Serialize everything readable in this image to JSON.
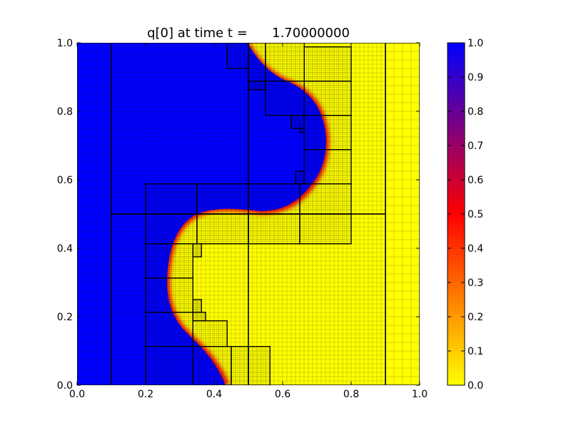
{
  "chart_data": {
    "type": "heatmap",
    "title": "q[0] at time t =      1.70000000",
    "xlabel": "",
    "ylabel": "",
    "xlim": [
      0.0,
      1.0
    ],
    "ylim": [
      0.0,
      1.0
    ],
    "x_ticks": [
      "0.0",
      "0.2",
      "0.4",
      "0.6",
      "0.8",
      "1.0"
    ],
    "y_ticks": [
      "0.0",
      "0.2",
      "0.4",
      "0.6",
      "0.8",
      "1.0"
    ],
    "colorbar": {
      "range": [
        0.0,
        1.0
      ],
      "ticks": [
        "0.0",
        "0.1",
        "0.2",
        "0.3",
        "0.4",
        "0.5",
        "0.6",
        "0.7",
        "0.8",
        "0.9",
        "1.0"
      ],
      "colormap": [
        "#ffff00",
        "#ff0000",
        "#0000ff"
      ]
    },
    "field_description": "q[0]=1 (blue) on left region, q[0]=0 (yellow) on right, separated by S-shaped interface",
    "amr_patches": [
      {
        "x0": 0.0,
        "x1": 0.1,
        "y0": 0.0,
        "y1": 1.0,
        "level": 1
      },
      {
        "x0": 0.1,
        "x1": 0.5,
        "y0": 0.5,
        "y1": 1.0,
        "level": 2
      },
      {
        "x0": 0.1,
        "x1": 0.5,
        "y0": 0.0,
        "y1": 0.5,
        "level": 2
      },
      {
        "x0": 0.5,
        "x1": 0.9,
        "y0": 0.0,
        "y1": 0.5,
        "level": 2
      },
      {
        "x0": 0.5,
        "x1": 0.9,
        "y0": 0.5,
        "y1": 1.0,
        "level": 2
      },
      {
        "x0": 0.9,
        "x1": 1.0,
        "y0": 0.0,
        "y1": 1.0,
        "level": 1
      },
      {
        "x0": 0.2,
        "x1": 0.35,
        "y0": 0.5,
        "y1": 0.588,
        "level": 3
      },
      {
        "x0": 0.35,
        "x1": 0.5,
        "y0": 0.5,
        "y1": 0.588,
        "level": 3
      },
      {
        "x0": 0.2,
        "x1": 0.35,
        "y0": 0.413,
        "y1": 0.5,
        "level": 3
      },
      {
        "x0": 0.35,
        "x1": 0.5,
        "y0": 0.413,
        "y1": 0.5,
        "level": 3
      },
      {
        "x0": 0.5,
        "x1": 0.65,
        "y0": 0.5,
        "y1": 0.588,
        "level": 3
      },
      {
        "x0": 0.65,
        "x1": 0.8,
        "y0": 0.5,
        "y1": 0.588,
        "level": 3
      },
      {
        "x0": 0.5,
        "x1": 0.65,
        "y0": 0.413,
        "y1": 0.5,
        "level": 3
      },
      {
        "x0": 0.65,
        "x1": 0.8,
        "y0": 0.413,
        "y1": 0.5,
        "level": 3
      },
      {
        "x0": 0.2,
        "x1": 0.338,
        "y0": 0.313,
        "y1": 0.413,
        "level": 3
      },
      {
        "x0": 0.2,
        "x1": 0.338,
        "y0": 0.213,
        "y1": 0.313,
        "level": 3
      },
      {
        "x0": 0.2,
        "x1": 0.338,
        "y0": 0.113,
        "y1": 0.213,
        "level": 3
      },
      {
        "x0": 0.2,
        "x1": 0.338,
        "y0": 0.0,
        "y1": 0.113,
        "level": 3
      },
      {
        "x0": 0.338,
        "x1": 0.363,
        "y0": 0.375,
        "y1": 0.413,
        "level": 4
      },
      {
        "x0": 0.338,
        "x1": 0.363,
        "y0": 0.213,
        "y1": 0.25,
        "level": 4
      },
      {
        "x0": 0.338,
        "x1": 0.375,
        "y0": 0.188,
        "y1": 0.213,
        "level": 4
      },
      {
        "x0": 0.338,
        "x1": 0.438,
        "y0": 0.113,
        "y1": 0.188,
        "level": 3
      },
      {
        "x0": 0.338,
        "x1": 0.45,
        "y0": 0.0,
        "y1": 0.113,
        "level": 3
      },
      {
        "x0": 0.45,
        "x1": 0.5,
        "y0": 0.0,
        "y1": 0.113,
        "level": 3
      },
      {
        "x0": 0.5,
        "x1": 0.563,
        "y0": 0.0,
        "y1": 0.113,
        "level": 3
      },
      {
        "x0": 0.438,
        "x1": 0.5,
        "y0": 0.925,
        "y1": 1.0,
        "level": 3
      },
      {
        "x0": 0.5,
        "x1": 0.55,
        "y0": 0.888,
        "y1": 1.0,
        "level": 3
      },
      {
        "x0": 0.55,
        "x1": 0.663,
        "y0": 0.888,
        "y1": 1.0,
        "level": 3
      },
      {
        "x0": 0.5,
        "x1": 0.55,
        "y0": 0.863,
        "y1": 0.888,
        "level": 4
      },
      {
        "x0": 0.55,
        "x1": 0.663,
        "y0": 0.788,
        "y1": 0.888,
        "level": 3
      },
      {
        "x0": 0.625,
        "x1": 0.663,
        "y0": 0.75,
        "y1": 0.788,
        "level": 4
      },
      {
        "x0": 0.65,
        "x1": 0.663,
        "y0": 0.738,
        "y1": 0.75,
        "level": 4
      },
      {
        "x0": 0.663,
        "x1": 0.8,
        "y0": 0.888,
        "y1": 0.988,
        "level": 3
      },
      {
        "x0": 0.663,
        "x1": 0.8,
        "y0": 0.788,
        "y1": 0.888,
        "level": 3
      },
      {
        "x0": 0.663,
        "x1": 0.8,
        "y0": 0.688,
        "y1": 0.788,
        "level": 3
      },
      {
        "x0": 0.663,
        "x1": 0.8,
        "y0": 0.588,
        "y1": 0.688,
        "level": 3
      },
      {
        "x0": 0.638,
        "x1": 0.663,
        "y0": 0.588,
        "y1": 0.625,
        "level": 4
      }
    ]
  }
}
